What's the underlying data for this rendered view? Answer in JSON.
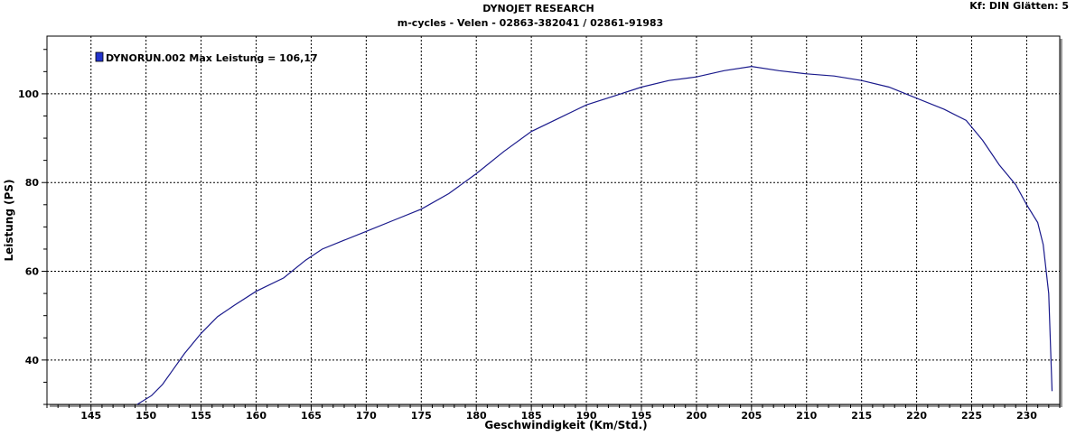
{
  "header": {
    "title": "DYNOJET RESEARCH",
    "subtitle": "m-cycles - Velen - 02863-382041  /  02861-91983",
    "settings": "Kf: DIN  Glätten: 5"
  },
  "chart_data": {
    "type": "line",
    "xlabel": "Geschwindigkeit (Km/Std.)",
    "ylabel": "Leistung (PS)",
    "xlim": [
      141,
      233
    ],
    "ylim": [
      30,
      113
    ],
    "xticks": [
      145,
      150,
      155,
      160,
      165,
      170,
      175,
      180,
      185,
      190,
      195,
      200,
      205,
      210,
      215,
      220,
      225,
      230
    ],
    "yticks": [
      40,
      60,
      80,
      100
    ],
    "grid": true,
    "colors": {
      "series": "#1a1a8c",
      "grid": "#000000",
      "legend_swatch": "#2233cc"
    },
    "legend": {
      "text": "DYNORUN.002 Max Leistung = 106,17",
      "placement": "top-left"
    },
    "series": [
      {
        "name": "DYNORUN.002",
        "x": [
          149.2,
          150.5,
          151.5,
          152.5,
          153.5,
          155,
          156.5,
          158,
          160,
          162.5,
          164.5,
          166,
          168,
          170,
          172.5,
          175,
          177.5,
          180,
          182.5,
          185,
          187.5,
          190,
          192.5,
          195,
          197.5,
          200,
          202.5,
          205,
          207.5,
          210,
          212.5,
          215,
          217.5,
          220,
          222.5,
          224.5,
          226,
          227.5,
          229,
          230,
          231,
          231.5,
          232,
          232.3
        ],
        "y": [
          30,
          32,
          34.5,
          38,
          41.5,
          46,
          49.8,
          52.3,
          55.5,
          58.5,
          62.5,
          65,
          67,
          69,
          71.5,
          74,
          77.5,
          82,
          87,
          91.5,
          94.5,
          97.5,
          99.5,
          101.5,
          103,
          103.8,
          105.2,
          106.17,
          105.2,
          104.5,
          104,
          103,
          101.5,
          99,
          96.5,
          94,
          89.5,
          84,
          79.5,
          75,
          71,
          66,
          55,
          33
        ]
      }
    ]
  }
}
